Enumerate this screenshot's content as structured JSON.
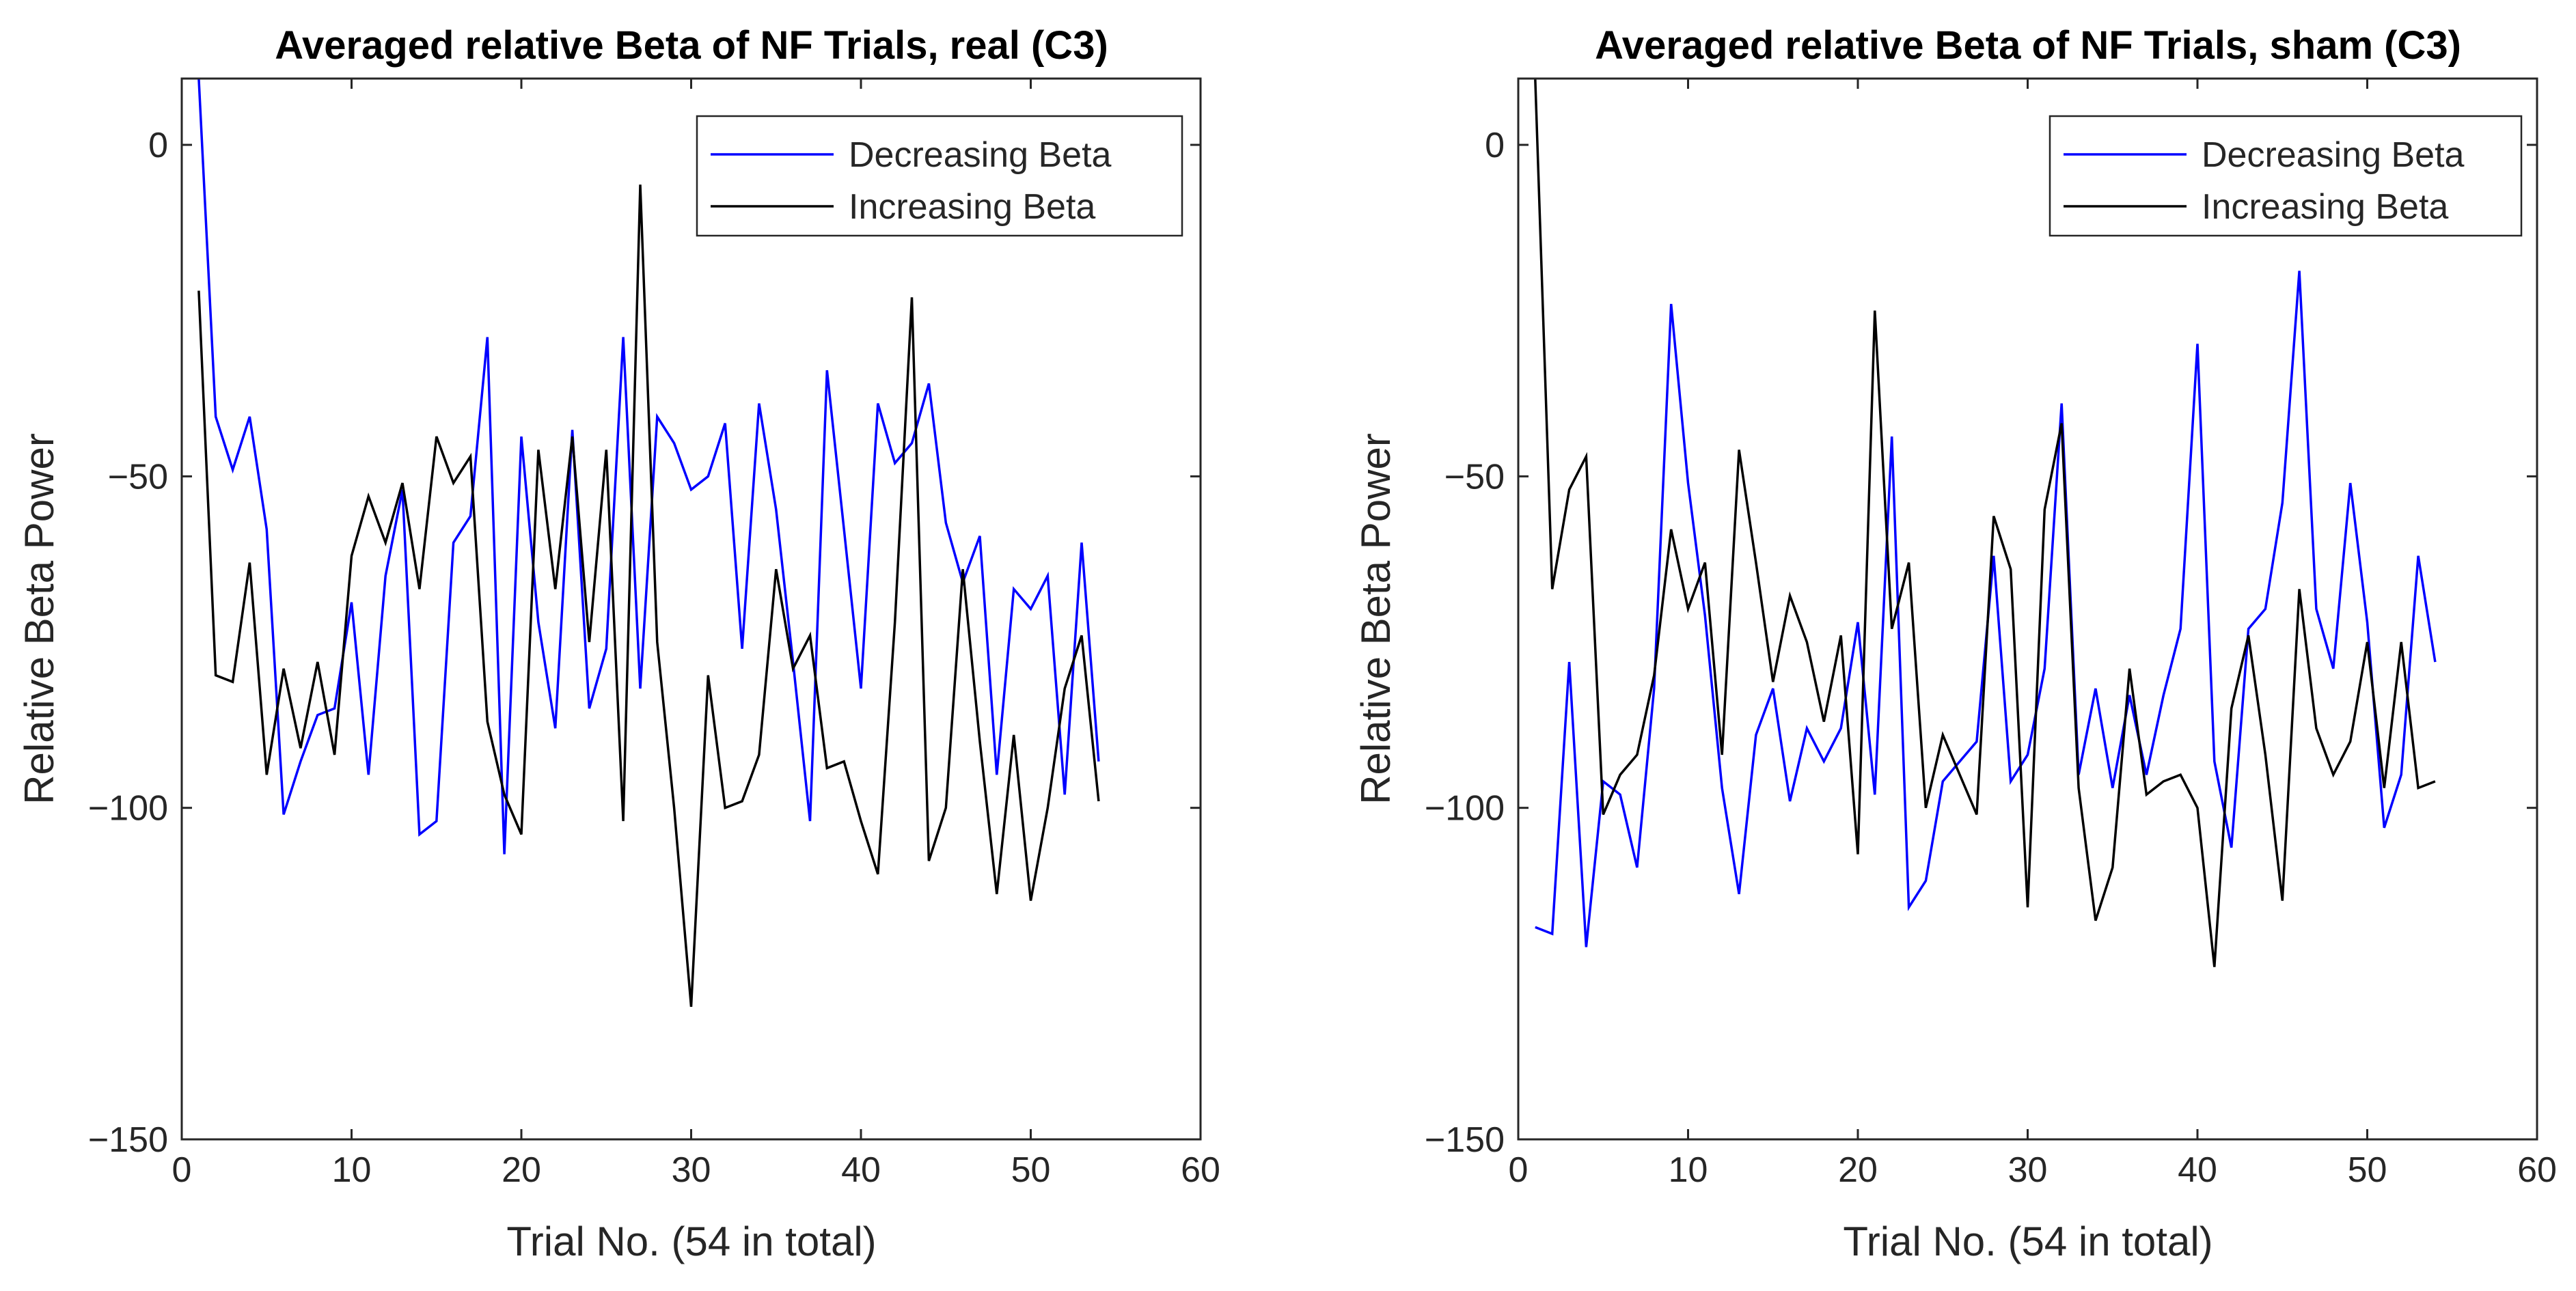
{
  "chart_data": [
    {
      "type": "line",
      "title": "Averaged relative Beta of NF Trials, real (C3)",
      "xlabel": "Trial No. (54 in total)",
      "ylabel": "Relative Beta Power",
      "xlim": [
        0,
        60
      ],
      "ylim": [
        -150,
        10
      ],
      "xticks": [
        0,
        10,
        20,
        30,
        40,
        50,
        60
      ],
      "yticks": [
        -150,
        -100,
        -50,
        0
      ],
      "legend_location": "top-right",
      "series": [
        {
          "name": "Decreasing Beta",
          "color": "#0000ff",
          "x": [
            1,
            2,
            3,
            4,
            5,
            6,
            7,
            8,
            9,
            10,
            11,
            12,
            13,
            14,
            15,
            16,
            17,
            18,
            19,
            20,
            21,
            22,
            23,
            24,
            25,
            26,
            27,
            28,
            29,
            30,
            31,
            32,
            33,
            34,
            35,
            36,
            37,
            38,
            39,
            40,
            41,
            42,
            43,
            44,
            45,
            46,
            47,
            48,
            49,
            50,
            51,
            52,
            53,
            54
          ],
          "values": [
            10,
            -41,
            -49,
            -41,
            -58,
            -101,
            -93,
            -86,
            -85,
            -69,
            -95,
            -65,
            -52,
            -104,
            -102,
            -60,
            -56,
            -29,
            -107,
            -44,
            -72,
            -88,
            -43,
            -85,
            -76,
            -29,
            -82,
            -41,
            -45,
            -52,
            -50,
            -42,
            -76,
            -39,
            -55,
            -78,
            -102,
            -34,
            -58,
            -82,
            -39,
            -48,
            -45,
            -36,
            -57,
            -66,
            -59,
            -95,
            -67,
            -70,
            -65,
            -98,
            -60,
            -93
          ]
        },
        {
          "name": "Increasing Beta",
          "color": "#000000",
          "x": [
            1,
            2,
            3,
            4,
            5,
            6,
            7,
            8,
            9,
            10,
            11,
            12,
            13,
            14,
            15,
            16,
            17,
            18,
            19,
            20,
            21,
            22,
            23,
            24,
            25,
            26,
            27,
            28,
            29,
            30,
            31,
            32,
            33,
            34,
            35,
            36,
            37,
            38,
            39,
            40,
            41,
            42,
            43,
            44,
            45,
            46,
            47,
            48,
            49,
            50,
            51,
            52,
            53,
            54
          ],
          "values": [
            -22,
            -80,
            -81,
            -63,
            -95,
            -79,
            -91,
            -78,
            -92,
            -62,
            -53,
            -60,
            -51,
            -67,
            -44,
            -51,
            -47,
            -87,
            -98,
            -104,
            -46,
            -67,
            -44,
            -75,
            -46,
            -102,
            -6,
            -75,
            -100,
            -130,
            -80,
            -100,
            -99,
            -92,
            -64,
            -79,
            -74,
            -94,
            -93,
            -102,
            -110,
            -72,
            -23,
            -108,
            -100,
            -64,
            -90,
            -113,
            -89,
            -114,
            -100,
            -82,
            -74,
            -99
          ]
        }
      ]
    },
    {
      "type": "line",
      "title": "Averaged relative Beta of NF Trials, sham (C3)",
      "xlabel": "Trial No. (54 in total)",
      "ylabel": "Relative Beta Power",
      "xlim": [
        0,
        60
      ],
      "ylim": [
        -150,
        10
      ],
      "xticks": [
        0,
        10,
        20,
        30,
        40,
        50,
        60
      ],
      "yticks": [
        -150,
        -100,
        -50,
        0
      ],
      "legend_location": "top-right",
      "series": [
        {
          "name": "Decreasing Beta",
          "color": "#0000ff",
          "x": [
            1,
            2,
            3,
            4,
            5,
            6,
            7,
            8,
            9,
            10,
            11,
            12,
            13,
            14,
            15,
            16,
            17,
            18,
            19,
            20,
            21,
            22,
            23,
            24,
            25,
            26,
            27,
            28,
            29,
            30,
            31,
            32,
            33,
            34,
            35,
            36,
            37,
            38,
            39,
            40,
            41,
            42,
            43,
            44,
            45,
            46,
            47,
            48,
            49,
            50,
            51,
            52,
            53,
            54
          ],
          "values": [
            -118,
            -119,
            -78,
            -121,
            -96,
            -98,
            -109,
            -82,
            -24,
            -51,
            -71,
            -97,
            -113,
            -89,
            -82,
            -99,
            -88,
            -93,
            -88,
            -72,
            -98,
            -44,
            -115,
            -111,
            -96,
            -93,
            -90,
            -62,
            -96,
            -92,
            -79,
            -39,
            -95,
            -82,
            -97,
            -83,
            -95,
            -83,
            -73,
            -30,
            -93,
            -106,
            -73,
            -70,
            -54,
            -19,
            -70,
            -79,
            -51,
            -72,
            -103,
            -95,
            -62,
            -78
          ]
        },
        {
          "name": "Increasing Beta",
          "color": "#000000",
          "x": [
            1,
            2,
            3,
            4,
            5,
            6,
            7,
            8,
            9,
            10,
            11,
            12,
            13,
            14,
            15,
            16,
            17,
            18,
            19,
            20,
            21,
            22,
            23,
            24,
            25,
            26,
            27,
            28,
            29,
            30,
            31,
            32,
            33,
            34,
            35,
            36,
            37,
            38,
            39,
            40,
            41,
            42,
            43,
            44,
            45,
            46,
            47,
            48,
            49,
            50,
            51,
            52,
            53,
            54
          ],
          "values": [
            10,
            -67,
            -52,
            -47,
            -101,
            -95,
            -92,
            -80,
            -58,
            -70,
            -63,
            -92,
            -46,
            -63,
            -81,
            -68,
            -75,
            -87,
            -74,
            -107,
            -25,
            -73,
            -63,
            -100,
            -89,
            -95,
            -101,
            -56,
            -64,
            -115,
            -55,
            -42,
            -97,
            -117,
            -109,
            -79,
            -98,
            -96,
            -95,
            -100,
            -124,
            -85,
            -74,
            -92,
            -114,
            -67,
            -88,
            -95,
            -90,
            -75,
            -97,
            -75,
            -97,
            -96
          ]
        }
      ]
    }
  ]
}
